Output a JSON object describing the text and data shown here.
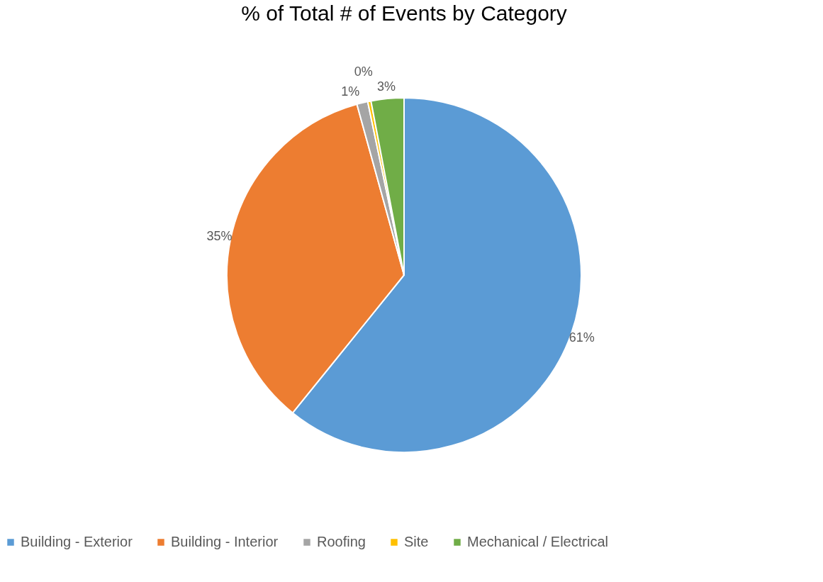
{
  "chart_data": {
    "type": "pie",
    "title": "% of Total # of Events by Category",
    "categories": [
      "Building - Exterior",
      "Building - Interior",
      "Roofing",
      "Site",
      "Mechanical / Electrical"
    ],
    "values": [
      61,
      35,
      1,
      0.3,
      3
    ],
    "colors": [
      "#5b9bd5",
      "#ed7d31",
      "#a5a5a5",
      "#ffc000",
      "#70ad47"
    ],
    "value_labels": [
      "61%",
      "35%",
      "1%",
      "0%",
      "3%"
    ],
    "legend": "bottom"
  }
}
